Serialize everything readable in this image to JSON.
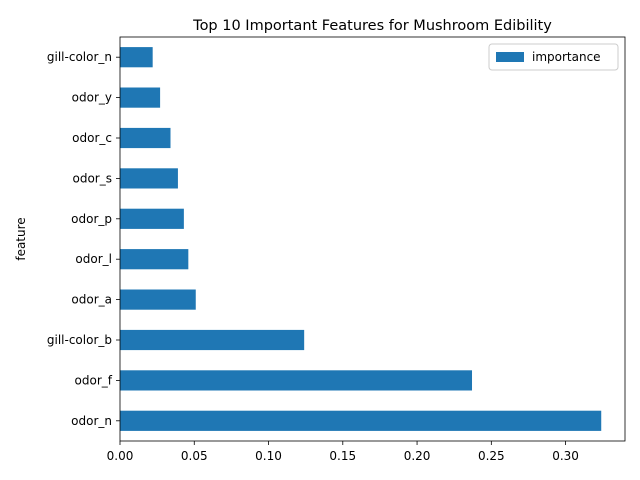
{
  "chart_data": {
    "type": "bar",
    "orientation": "horizontal",
    "title": "Top 10 Important Features for Mushroom Edibility",
    "xlabel": "",
    "ylabel": "feature",
    "categories": [
      "odor_n",
      "odor_f",
      "gill-color_b",
      "odor_a",
      "odor_l",
      "odor_p",
      "odor_s",
      "odor_c",
      "odor_y",
      "gill-color_n"
    ],
    "series": [
      {
        "name": "importance",
        "color": "#1f77b4",
        "values": [
          0.324,
          0.237,
          0.124,
          0.051,
          0.046,
          0.043,
          0.039,
          0.034,
          0.027,
          0.022
        ]
      }
    ],
    "xlim": [
      0.0,
      0.34
    ],
    "xticks": [
      "0.00",
      "0.05",
      "0.10",
      "0.15",
      "0.20",
      "0.25",
      "0.30"
    ],
    "grid": false,
    "legend": {
      "position": "top-right"
    }
  }
}
